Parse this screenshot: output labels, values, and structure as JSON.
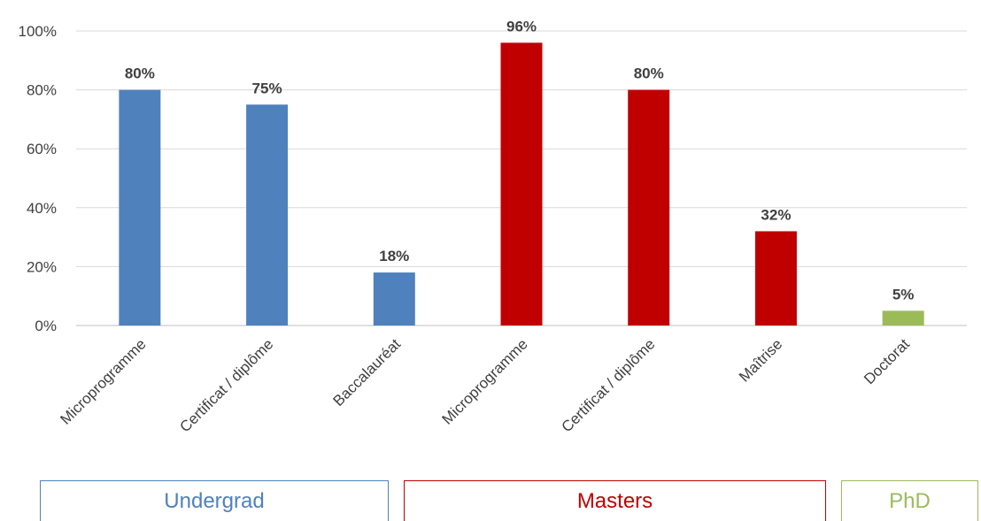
{
  "chart_data": {
    "type": "bar",
    "categories": [
      "Microprogramme",
      "Certificat / diplôme",
      "Baccalauréat",
      "Microprogramme",
      "Certificat / diplôme",
      "Maîtrise",
      "Doctorat"
    ],
    "values": [
      80,
      75,
      18,
      96,
      80,
      32,
      5
    ],
    "data_labels": [
      "80%",
      "75%",
      "18%",
      "96%",
      "80%",
      "32%",
      "5%"
    ],
    "category_groups": [
      0,
      0,
      0,
      1,
      1,
      1,
      2
    ],
    "ylim": [
      0,
      100
    ],
    "yticks": [
      0,
      20,
      40,
      60,
      80,
      100
    ],
    "ytick_labels": [
      "0%",
      "20%",
      "40%",
      "60%",
      "80%",
      "100%"
    ],
    "grid": true,
    "legend": "none"
  },
  "groups": [
    {
      "label": "Undergrad",
      "color": "#4f81bd"
    },
    {
      "label": "Masters",
      "color": "#c00000"
    },
    {
      "label": "PhD",
      "color": "#9bbb59"
    }
  ],
  "colors": {
    "grid": "#d9d9d9",
    "axis": "#bfbfbf",
    "text": "#404040"
  }
}
